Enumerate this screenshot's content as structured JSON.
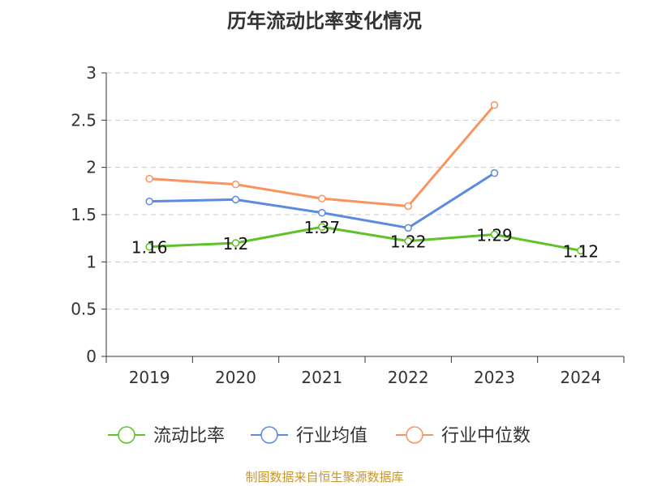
{
  "chart_data": {
    "type": "line",
    "title": "历年流动比率变化情况",
    "source_note": "制图数据来自恒生聚源数据库",
    "categories": [
      "2019",
      "2020",
      "2021",
      "2022",
      "2023",
      "2024"
    ],
    "ylim": [
      0,
      3
    ],
    "yticks": [
      "0",
      "0.5",
      "1",
      "1.5",
      "2",
      "2.5",
      "3"
    ],
    "grid": "horizontal dashed",
    "legend_position": "bottom",
    "series": [
      {
        "name": "流动比率",
        "color": "#5ec228",
        "values": [
          1.16,
          1.2,
          1.37,
          1.22,
          1.29,
          1.12
        ],
        "labels": [
          "1.16",
          "1.2",
          "1.37",
          "1.22",
          "1.29",
          "1.12"
        ]
      },
      {
        "name": "行业均值",
        "color": "#5b8ae0",
        "values": [
          1.64,
          1.66,
          1.52,
          1.36,
          1.94,
          null
        ]
      },
      {
        "name": "行业中位数",
        "color": "#f99461",
        "values": [
          1.88,
          1.82,
          1.67,
          1.59,
          2.66,
          null
        ]
      }
    ]
  }
}
